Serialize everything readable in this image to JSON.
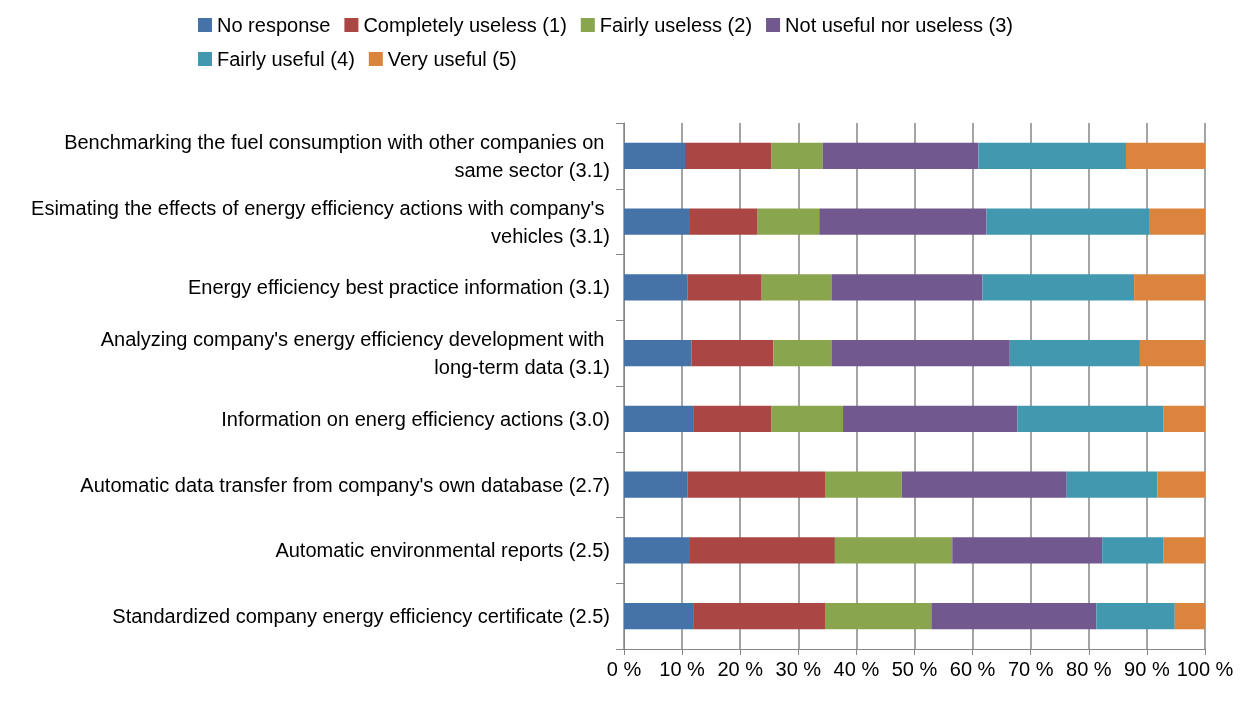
{
  "chart_data": {
    "type": "bar",
    "orientation": "horizontal",
    "stacked": true,
    "categories": [
      "Benchmarking the fuel consumption with other companies on same sector (3.1)",
      "Esimating the effects of energy efficiency actions with company's vehicles (3.1)",
      "Energy efficiency best practice information (3.1)",
      "Analyzing company's energy efficiency development with long-term data (3.1)",
      "Information on energ efficiency actions (3.0)",
      "Automatic data transfer from company's own database (2.7)",
      "Automatic environmental reports (2.5)",
      "Standardized company energy efficiency certificate (2.5)"
    ],
    "series": [
      {
        "name": "No response",
        "color": "#4572a7",
        "values": [
          10.5,
          11.2,
          10.9,
          11.6,
          11.9,
          10.9,
          11.2,
          11.9
        ]
      },
      {
        "name": "Completely useless (1)",
        "color": "#aa4643",
        "values": [
          14.9,
          11.8,
          12.8,
          14.1,
          13.5,
          23.7,
          25.1,
          22.7
        ]
      },
      {
        "name": "Fairly useless (2)",
        "color": "#89a54e",
        "values": [
          8.8,
          10.6,
          12.0,
          10.0,
          12.3,
          13.2,
          20.2,
          18.3
        ]
      },
      {
        "name": "Not useful nor useless (3)",
        "color": "#71588f",
        "values": [
          26.8,
          28.8,
          26.0,
          30.7,
          30.0,
          28.4,
          25.8,
          28.4
        ]
      },
      {
        "name": "Fairly useful (4)",
        "color": "#4198af",
        "values": [
          25.4,
          28.1,
          26.1,
          22.4,
          25.1,
          15.6,
          10.5,
          13.5
        ]
      },
      {
        "name": "Very useful (5)",
        "color": "#db843d",
        "values": [
          13.6,
          9.5,
          12.2,
          11.2,
          7.2,
          8.2,
          7.2,
          5.2
        ]
      }
    ],
    "xlim": [
      0,
      100
    ],
    "xticks": [
      {
        "value": 0,
        "label": "0 %"
      },
      {
        "value": 10,
        "label": "10 %"
      },
      {
        "value": 20,
        "label": "20 %"
      },
      {
        "value": 30,
        "label": "30 %"
      },
      {
        "value": 40,
        "label": "40 %"
      },
      {
        "value": 50,
        "label": "50 %"
      },
      {
        "value": 60,
        "label": "60 %"
      },
      {
        "value": 70,
        "label": "70 %"
      },
      {
        "value": 80,
        "label": "80 %"
      },
      {
        "value": 90,
        "label": "90 %"
      },
      {
        "value": 100,
        "label": "100 %"
      }
    ],
    "grid": "x",
    "legend": "top"
  }
}
